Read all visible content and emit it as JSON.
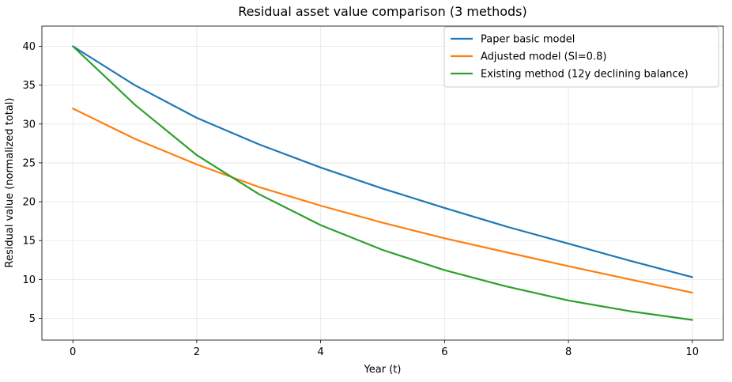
{
  "chart_data": {
    "type": "line",
    "title": "Residual asset value comparison (3 methods)",
    "xlabel": "Year (t)",
    "ylabel": "Residual value (normalized total)",
    "xlim": [
      -0.5,
      10.5
    ],
    "ylim": [
      2.2,
      42.6
    ],
    "xticks": [
      0,
      2,
      4,
      6,
      8,
      10
    ],
    "yticks": [
      5,
      10,
      15,
      20,
      25,
      30,
      35,
      40
    ],
    "grid": true,
    "legend_position": "upper-right",
    "x": [
      0,
      1,
      2,
      3,
      4,
      5,
      6,
      7,
      8,
      9,
      10
    ],
    "series": [
      {
        "name": "Paper basic model",
        "color": "#1f77b4",
        "values": [
          40.0,
          35.0,
          30.8,
          27.4,
          24.4,
          21.7,
          19.2,
          16.8,
          14.6,
          12.4,
          10.3
        ]
      },
      {
        "name": "Adjusted model (SI=0.8)",
        "color": "#ff7f0e",
        "values": [
          32.0,
          28.1,
          24.8,
          21.9,
          19.5,
          17.3,
          15.3,
          13.5,
          11.7,
          10.0,
          8.3
        ]
      },
      {
        "name": "Existing method (12y declining balance)",
        "color": "#2ca02c",
        "values": [
          40.0,
          32.5,
          26.0,
          21.0,
          17.0,
          13.8,
          11.2,
          9.1,
          7.3,
          5.9,
          4.8
        ]
      }
    ]
  }
}
